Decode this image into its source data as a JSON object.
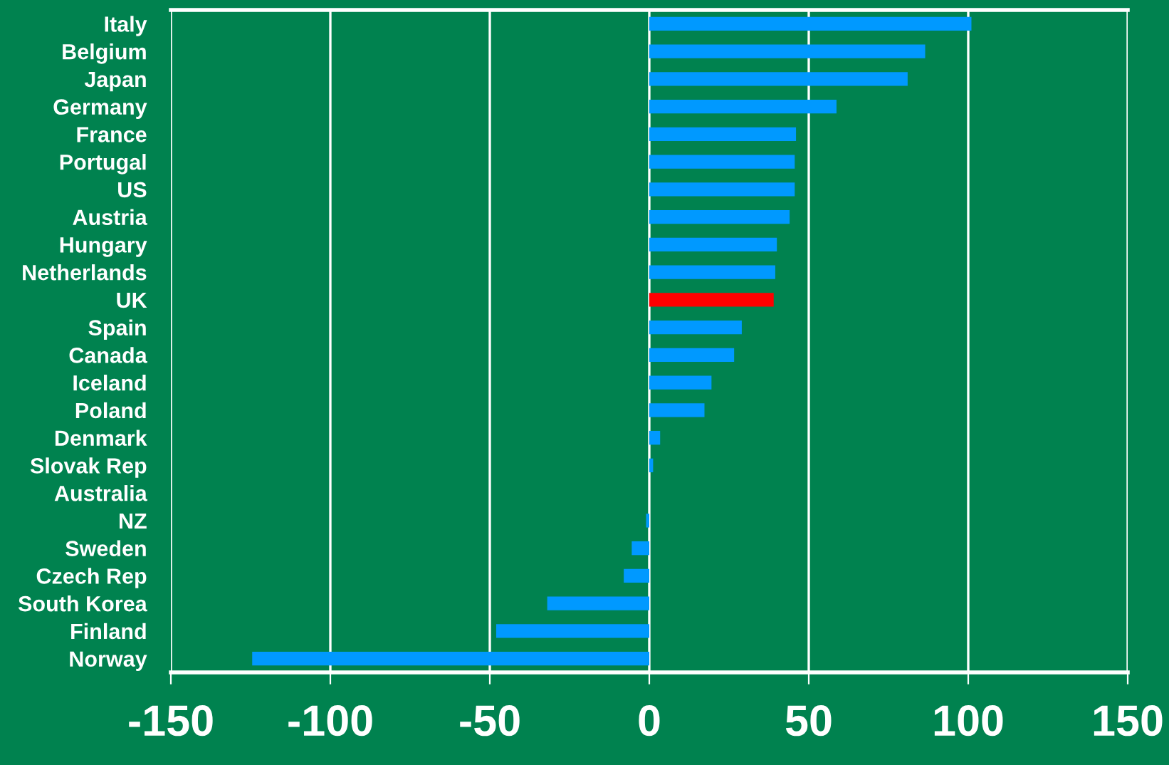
{
  "chart_data": {
    "type": "bar",
    "orientation": "horizontal",
    "categories": [
      "Italy",
      "Belgium",
      "Japan",
      "Germany",
      "France",
      "Portugal",
      "US",
      "Austria",
      "Hungary",
      "Netherlands",
      "UK",
      "Spain",
      "Canada",
      "Iceland",
      "Poland",
      "Denmark",
      "Slovak Rep",
      "Australia",
      "NZ",
      "Sweden",
      "Czech Rep",
      "South Korea",
      "Finland",
      "Norway"
    ],
    "values": [
      101,
      86.5,
      81,
      58.7,
      46,
      45.6,
      45.6,
      44,
      40,
      39.5,
      39,
      29,
      26.6,
      19.5,
      17.3,
      3.4,
      1.2,
      0,
      -1,
      -5.5,
      -8,
      -32,
      -48,
      -124.5
    ],
    "colors": [
      "#0099ff",
      "#0099ff",
      "#0099ff",
      "#0099ff",
      "#0099ff",
      "#0099ff",
      "#0099ff",
      "#0099ff",
      "#0099ff",
      "#0099ff",
      "#ff0000",
      "#0099ff",
      "#0099ff",
      "#0099ff",
      "#0099ff",
      "#0099ff",
      "#0099ff",
      "#0099ff",
      "#0099ff",
      "#0099ff",
      "#0099ff",
      "#0099ff",
      "#0099ff",
      "#0099ff"
    ],
    "xlim": [
      -150,
      150
    ],
    "xticks": [
      -150,
      -100,
      -50,
      0,
      50,
      100,
      150
    ],
    "grid": "x"
  }
}
